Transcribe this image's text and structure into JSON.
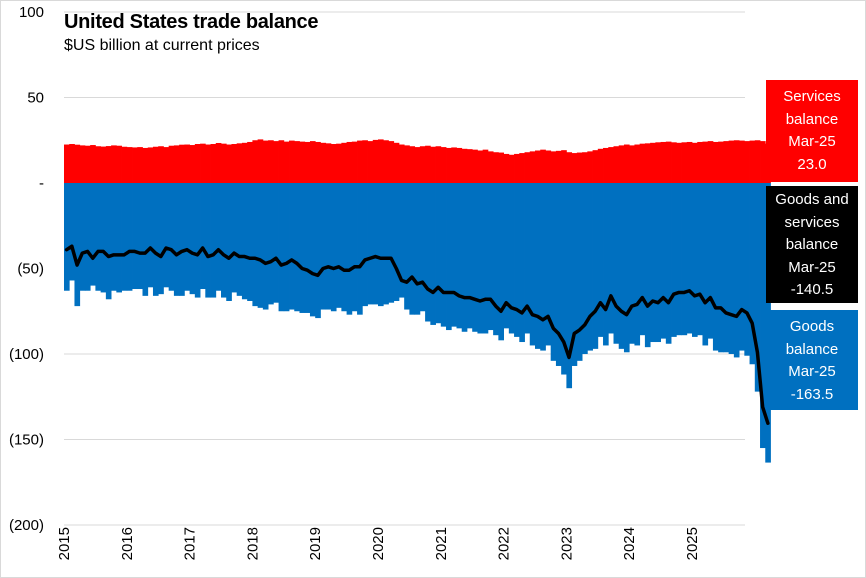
{
  "chart_data": {
    "type": "bar+line",
    "title": "United States trade balance",
    "subtitle": "$US billion at current prices",
    "ylim": [
      -200,
      100
    ],
    "ytick_labels": [
      {
        "value": 100,
        "label": "100"
      },
      {
        "value": 50,
        "label": "50"
      },
      {
        "value": 0,
        "label": "-"
      },
      {
        "value": -50,
        "label": "(50)"
      },
      {
        "value": -100,
        "label": "(100)"
      },
      {
        "value": -150,
        "label": "(150)"
      },
      {
        "value": -200,
        "label": "(200)"
      }
    ],
    "xtick_labels": [
      "2015",
      "2016",
      "2017",
      "2018",
      "2019",
      "2020",
      "2021",
      "2022",
      "2023",
      "2024",
      "2025"
    ],
    "x_start": "2015-01",
    "x_end": "2025-03",
    "grid": true,
    "series": [
      {
        "name": "Services balance",
        "kind": "bar",
        "color": "#ff0000",
        "values": [
          22.5,
          22.8,
          22.4,
          22.0,
          21.8,
          22.2,
          21.5,
          21.3,
          21.6,
          22.0,
          21.8,
          21.2,
          21.0,
          20.8,
          21.0,
          20.5,
          20.8,
          21.2,
          21.5,
          21.0,
          21.8,
          22.0,
          22.4,
          22.5,
          22.2,
          22.8,
          23.0,
          22.5,
          22.8,
          23.4,
          23.0,
          22.5,
          22.8,
          23.2,
          23.5,
          24.0,
          25.0,
          25.5,
          24.8,
          25.0,
          24.5,
          25.0,
          24.2,
          24.8,
          24.5,
          24.2,
          24.0,
          24.5,
          24.0,
          23.5,
          23.2,
          22.8,
          23.0,
          23.5,
          24.0,
          24.2,
          24.8,
          25.0,
          24.5,
          25.2,
          25.5,
          25.0,
          24.5,
          23.5,
          22.5,
          22.0,
          21.5,
          21.0,
          21.5,
          21.8,
          21.2,
          21.5,
          21.0,
          20.5,
          20.8,
          20.5,
          20.0,
          19.8,
          19.5,
          19.0,
          19.5,
          18.5,
          18.0,
          17.8,
          17.0,
          16.5,
          17.0,
          17.5,
          18.0,
          18.5,
          19.0,
          19.5,
          19.0,
          18.5,
          18.8,
          19.2,
          18.0,
          17.5,
          17.8,
          18.0,
          18.5,
          19.2,
          20.0,
          20.5,
          21.0,
          21.5,
          22.0,
          22.5,
          22.0,
          22.5,
          23.0,
          23.2,
          23.5,
          23.8,
          24.0,
          24.2,
          23.8,
          23.5,
          23.8,
          24.0,
          23.5,
          24.0,
          24.2,
          24.5,
          24.0,
          24.2,
          24.5,
          24.8,
          25.0,
          24.8,
          24.5,
          24.8,
          25.0,
          24.5,
          23.0
        ],
        "latest": {
          "period": "Mar-25",
          "value": 23.0
        }
      },
      {
        "name": "Goods balance",
        "kind": "bar",
        "color": "#0070c0",
        "values": [
          -63,
          -57,
          -72,
          -63,
          -63,
          -60,
          -63,
          -64,
          -68,
          -63,
          -64,
          -63,
          -63,
          -62,
          -62,
          -66,
          -61,
          -66,
          -65,
          -61,
          -63,
          -66,
          -66,
          -63,
          -65,
          -67,
          -62,
          -67,
          -67,
          -63,
          -67,
          -69,
          -64,
          -66,
          -68,
          -69,
          -72,
          -73,
          -74,
          -71,
          -70,
          -75,
          -75,
          -74,
          -75,
          -76,
          -76,
          -78,
          -79,
          -74,
          -74,
          -75,
          -73,
          -75,
          -77,
          -75,
          -77,
          -72,
          -71,
          -71,
          -72,
          -71,
          -70,
          -69,
          -67,
          -74,
          -77,
          -77,
          -75,
          -81,
          -83,
          -82,
          -84,
          -86,
          -84,
          -85,
          -87,
          -85,
          -87,
          -88,
          -88,
          -86,
          -89,
          -92,
          -85,
          -88,
          -90,
          -93,
          -88,
          -95,
          -97,
          -98,
          -95,
          -104,
          -107,
          -112,
          -120,
          -107,
          -104,
          -100,
          -98,
          -97,
          -90,
          -95,
          -88,
          -94,
          -97,
          -99,
          -94,
          -95,
          -89,
          -96,
          -93,
          -93,
          -91,
          -94,
          -90,
          -89,
          -89,
          -88,
          -90,
          -89,
          -95,
          -91,
          -98,
          -99,
          -99,
          -100,
          -102,
          -98,
          -101,
          -106,
          -122,
          -155,
          -163.5
        ],
        "latest": {
          "period": "Mar-25",
          "value": -163.5
        }
      },
      {
        "name": "Goods and services balance",
        "kind": "line",
        "color": "#000000",
        "values": [
          -39,
          -37,
          -48,
          -41,
          -40,
          -44,
          -40,
          -40,
          -43,
          -42,
          -42,
          -42,
          -40,
          -40,
          -41,
          -41,
          -38,
          -41,
          -43,
          -38,
          -39,
          -42,
          -40,
          -39,
          -41,
          -42,
          -38,
          -43,
          -42,
          -39,
          -42,
          -44,
          -41,
          -43,
          -43,
          -44,
          -44,
          -45,
          -47,
          -46,
          -44,
          -48,
          -47,
          -45,
          -47,
          -50,
          -51,
          -53,
          -54,
          -50,
          -49,
          -50,
          -49,
          -51,
          -51,
          -49,
          -49,
          -45,
          -44,
          -43,
          -44,
          -44,
          -44,
          -50,
          -57,
          -58,
          -55,
          -59,
          -58,
          -62,
          -64,
          -61,
          -64,
          -64,
          -64,
          -66,
          -67,
          -67,
          -68,
          -69,
          -68,
          -68,
          -72,
          -75,
          -70,
          -73,
          -74,
          -76,
          -72,
          -77,
          -78,
          -80,
          -78,
          -85,
          -88,
          -93,
          -102,
          -88,
          -86,
          -83,
          -78,
          -75,
          -70,
          -74,
          -66,
          -72,
          -75,
          -77,
          -72,
          -71,
          -67,
          -72,
          -69,
          -70,
          -67,
          -70,
          -65,
          -64,
          -64,
          -63,
          -66,
          -65,
          -70,
          -67,
          -73,
          -73,
          -76,
          -77,
          -78,
          -74,
          -76,
          -82,
          -99,
          -131,
          -140.5
        ],
        "latest": {
          "period": "Mar-25",
          "value": -140.5
        }
      }
    ],
    "legend": [
      {
        "lines": [
          "Services",
          "balance",
          "Mar-25",
          "23.0"
        ]
      },
      {
        "lines": [
          "Goods and",
          "services",
          "balance",
          "Mar-25",
          "-140.5"
        ]
      },
      {
        "lines": [
          "Goods",
          "balance",
          "Mar-25",
          "-163.5"
        ]
      }
    ],
    "legend_placement": "right"
  }
}
